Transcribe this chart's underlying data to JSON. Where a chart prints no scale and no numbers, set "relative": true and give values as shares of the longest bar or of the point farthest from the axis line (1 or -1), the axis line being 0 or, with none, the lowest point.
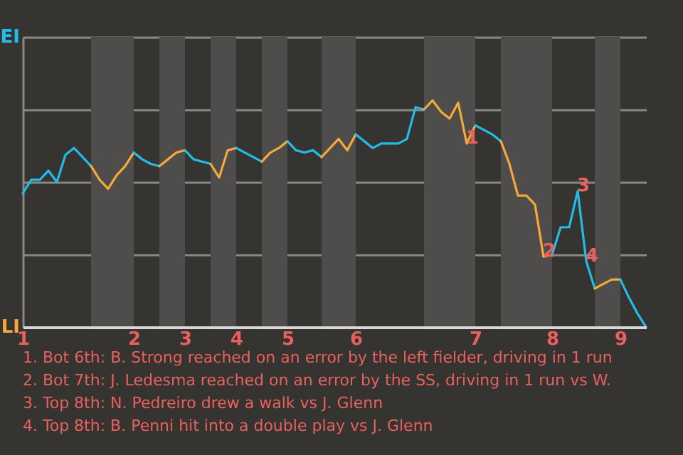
{
  "chart_data": {
    "type": "line",
    "relative": true,
    "categories": [
      "1",
      null,
      null,
      null,
      null,
      null,
      null,
      null,
      null,
      null,
      null,
      null,
      null,
      "2",
      null,
      null,
      null,
      null,
      null,
      "3",
      null,
      null,
      null,
      null,
      null,
      "4",
      null,
      null,
      null,
      null,
      null,
      "5",
      null,
      null,
      null,
      null,
      null,
      null,
      null,
      "6",
      null,
      null,
      null,
      null,
      null,
      null,
      null,
      null,
      null,
      null,
      null,
      null,
      null,
      "7",
      null,
      null,
      null,
      null,
      null,
      null,
      null,
      null,
      "8",
      null,
      null,
      null,
      null,
      null,
      null,
      null,
      "9",
      null,
      null,
      null
    ],
    "grid": "y",
    "series": [
      {
        "name": "EI",
        "color": "#22bde6",
        "values": [
          0.59,
          0.65,
          0.65,
          0.69,
          0.64,
          0.76,
          0.79,
          0.75,
          0.71,
          null,
          null,
          null,
          null,
          null,
          null,
          null,
          null,
          null,
          null,
          null,
          null,
          null,
          null,
          null,
          null,
          null,
          null,
          null,
          null,
          null,
          null,
          null,
          null,
          null,
          null,
          null,
          null,
          null,
          null,
          null,
          null,
          null,
          null,
          null,
          null,
          null,
          null,
          null,
          null,
          null,
          null,
          null,
          null,
          null,
          null,
          null,
          null,
          null,
          null,
          null,
          null,
          null,
          null,
          null,
          null,
          null,
          null,
          null,
          null,
          null,
          null,
          null,
          null,
          null
        ]
      },
      {
        "name": "LI",
        "color": "#f5a93a",
        "values": [
          null,
          null,
          null,
          null,
          null,
          null,
          null,
          null,
          0.71,
          0.65,
          0.61,
          0.67,
          0.71,
          0.77,
          null,
          null,
          null,
          null,
          null,
          null,
          null,
          null,
          null,
          null,
          null,
          null,
          null,
          null,
          null,
          null,
          null,
          null,
          null,
          null,
          null,
          null,
          null,
          null,
          null,
          null,
          null,
          null,
          null,
          null,
          null,
          null,
          null,
          null,
          null,
          null,
          null,
          null,
          null,
          null,
          null,
          null,
          null,
          null,
          null,
          null,
          null,
          null,
          null,
          null,
          null,
          null,
          null,
          null,
          null,
          null,
          null,
          null,
          null,
          null
        ]
      },
      {
        "color": "#22bde6",
        "values": [
          null,
          null,
          null,
          null,
          null,
          null,
          null,
          null,
          null,
          null,
          null,
          null,
          null,
          0.77,
          0.74,
          0.72,
          0.71,
          null,
          null,
          null,
          null,
          null,
          null,
          null,
          null,
          null,
          null,
          null,
          null,
          null,
          null,
          null,
          null,
          null,
          null,
          null,
          null,
          null,
          null,
          null,
          null,
          null,
          null,
          null,
          null,
          null,
          null,
          null,
          null,
          null,
          null,
          null,
          null,
          null,
          null,
          null,
          null,
          null,
          null,
          null,
          null,
          null,
          null,
          null,
          null,
          null,
          null,
          null,
          null,
          null,
          null,
          null,
          null,
          null
        ]
      },
      {
        "color": "#f5a93a",
        "values": [
          null,
          null,
          null,
          null,
          null,
          null,
          null,
          null,
          null,
          null,
          null,
          null,
          null,
          null,
          null,
          null,
          0.71,
          0.74,
          0.77,
          0.78,
          null,
          null,
          null,
          null,
          null,
          null,
          null,
          null,
          null,
          null,
          null,
          null,
          null,
          null,
          null,
          null,
          null,
          null,
          null,
          null,
          null,
          null,
          null,
          null,
          null,
          null,
          null,
          null,
          null,
          null,
          null,
          null,
          null,
          null,
          null,
          null,
          null,
          null,
          null,
          null,
          null,
          null,
          null,
          null,
          null,
          null,
          null,
          null,
          null,
          null,
          null,
          null,
          null,
          null
        ]
      },
      {
        "color": "#22bde6",
        "values": [
          null,
          null,
          null,
          null,
          null,
          null,
          null,
          null,
          null,
          null,
          null,
          null,
          null,
          null,
          null,
          null,
          null,
          null,
          null,
          0.78,
          0.74,
          0.73,
          0.72,
          null,
          null,
          null,
          null,
          null,
          null,
          null,
          null,
          null,
          null,
          null,
          null,
          null,
          null,
          null,
          null,
          null,
          null,
          null,
          null,
          null,
          null,
          null,
          null,
          null,
          null,
          null,
          null,
          null,
          null,
          null,
          null,
          null,
          null,
          null,
          null,
          null,
          null,
          null,
          null,
          null,
          null,
          null,
          null,
          null,
          null,
          null,
          null,
          null,
          null,
          null
        ]
      },
      {
        "color": "#f5a93a",
        "values": [
          null,
          null,
          null,
          null,
          null,
          null,
          null,
          null,
          null,
          null,
          null,
          null,
          null,
          null,
          null,
          null,
          null,
          null,
          null,
          null,
          null,
          null,
          0.72,
          0.66,
          0.78,
          0.79,
          null,
          null,
          null,
          null,
          null,
          null,
          null,
          null,
          null,
          null,
          null,
          null,
          null,
          null,
          null,
          null,
          null,
          null,
          null,
          null,
          null,
          null,
          null,
          null,
          null,
          null,
          null,
          null,
          null,
          null,
          null,
          null,
          null,
          null,
          null,
          null,
          null,
          null,
          null,
          null,
          null,
          null,
          null,
          null,
          null,
          null,
          null,
          null
        ]
      },
      {
        "color": "#22bde6",
        "values": [
          null,
          null,
          null,
          null,
          null,
          null,
          null,
          null,
          null,
          null,
          null,
          null,
          null,
          null,
          null,
          null,
          null,
          null,
          null,
          null,
          null,
          null,
          null,
          null,
          null,
          0.79,
          0.77,
          0.75,
          0.73,
          null,
          null,
          null,
          null,
          null,
          null,
          null,
          null,
          null,
          null,
          null,
          null,
          null,
          null,
          null,
          null,
          null,
          null,
          null,
          null,
          null,
          null,
          null,
          null,
          null,
          null,
          null,
          null,
          null,
          null,
          null,
          null,
          null,
          null,
          null,
          null,
          null,
          null,
          null,
          null,
          null,
          null,
          null,
          null,
          null
        ]
      },
      {
        "color": "#f5a93a",
        "values": [
          null,
          null,
          null,
          null,
          null,
          null,
          null,
          null,
          null,
          null,
          null,
          null,
          null,
          null,
          null,
          null,
          null,
          null,
          null,
          null,
          null,
          null,
          null,
          null,
          null,
          null,
          null,
          null,
          0.73,
          0.77,
          0.79,
          0.82,
          null,
          null,
          null,
          null,
          null,
          null,
          null,
          null,
          null,
          null,
          null,
          null,
          null,
          null,
          null,
          null,
          null,
          null,
          null,
          null,
          null,
          null,
          null,
          null,
          null,
          null,
          null,
          null,
          null,
          null,
          null,
          null,
          null,
          null,
          null,
          null,
          null,
          null,
          null,
          null,
          null,
          null
        ]
      },
      {
        "color": "#22bde6",
        "values": [
          null,
          null,
          null,
          null,
          null,
          null,
          null,
          null,
          null,
          null,
          null,
          null,
          null,
          null,
          null,
          null,
          null,
          null,
          null,
          null,
          null,
          null,
          null,
          null,
          null,
          null,
          null,
          null,
          null,
          null,
          null,
          0.82,
          0.78,
          0.77,
          0.78,
          0.75,
          null,
          null,
          null,
          null,
          null,
          null,
          null,
          null,
          null,
          null,
          null,
          null,
          null,
          null,
          null,
          null,
          null,
          null,
          null,
          null,
          null,
          null,
          null,
          null,
          null,
          null,
          null,
          null,
          null,
          null,
          null,
          null,
          null,
          null,
          null,
          null,
          null,
          null
        ]
      },
      {
        "color": "#f5a93a",
        "values": [
          null,
          null,
          null,
          null,
          null,
          null,
          null,
          null,
          null,
          null,
          null,
          null,
          null,
          null,
          null,
          null,
          null,
          null,
          null,
          null,
          null,
          null,
          null,
          null,
          null,
          null,
          null,
          null,
          null,
          null,
          null,
          null,
          null,
          null,
          null,
          0.75,
          0.79,
          0.83,
          0.78,
          0.85,
          null,
          null,
          null,
          null,
          null,
          null,
          null,
          null,
          null,
          null,
          null,
          null,
          null,
          null,
          null,
          null,
          null,
          null,
          null,
          null,
          null,
          null,
          null,
          null,
          null,
          null,
          null,
          null,
          null,
          null,
          null,
          null,
          null,
          null
        ]
      },
      {
        "color": "#22bde6",
        "values": [
          null,
          null,
          null,
          null,
          null,
          null,
          null,
          null,
          null,
          null,
          null,
          null,
          null,
          null,
          null,
          null,
          null,
          null,
          null,
          null,
          null,
          null,
          null,
          null,
          null,
          null,
          null,
          null,
          null,
          null,
          null,
          null,
          null,
          null,
          null,
          null,
          null,
          null,
          null,
          0.85,
          0.82,
          0.79,
          0.81,
          0.81,
          0.81,
          0.83,
          0.97,
          0.96,
          null,
          null,
          null,
          null,
          null,
          null,
          null,
          null,
          null,
          null,
          null,
          null,
          null,
          null,
          null,
          null,
          null,
          null,
          null,
          null,
          null,
          null,
          null,
          null,
          null,
          null
        ]
      },
      {
        "color": "#f5a93a",
        "values": [
          null,
          null,
          null,
          null,
          null,
          null,
          null,
          null,
          null,
          null,
          null,
          null,
          null,
          null,
          null,
          null,
          null,
          null,
          null,
          null,
          null,
          null,
          null,
          null,
          null,
          null,
          null,
          null,
          null,
          null,
          null,
          null,
          null,
          null,
          null,
          null,
          null,
          null,
          null,
          null,
          null,
          null,
          null,
          null,
          null,
          null,
          null,
          0.96,
          1,
          0.95,
          0.92,
          0.99,
          0.81,
          0.89,
          null,
          null,
          null,
          null,
          null,
          null,
          null,
          null,
          null,
          null,
          null,
          null,
          null,
          null,
          null,
          null,
          null,
          null,
          null,
          null
        ]
      },
      {
        "color": "#22bde6",
        "values": [
          null,
          null,
          null,
          null,
          null,
          null,
          null,
          null,
          null,
          null,
          null,
          null,
          null,
          null,
          null,
          null,
          null,
          null,
          null,
          null,
          null,
          null,
          null,
          null,
          null,
          null,
          null,
          null,
          null,
          null,
          null,
          null,
          null,
          null,
          null,
          null,
          null,
          null,
          null,
          null,
          null,
          null,
          null,
          null,
          null,
          null,
          null,
          null,
          null,
          null,
          null,
          null,
          null,
          0.89,
          0.87,
          0.85,
          0.82,
          null,
          null,
          null,
          null,
          null,
          null,
          null,
          null,
          null,
          null,
          null,
          null,
          null,
          null,
          null,
          null,
          null
        ]
      },
      {
        "color": "#f5a93a",
        "values": [
          null,
          null,
          null,
          null,
          null,
          null,
          null,
          null,
          null,
          null,
          null,
          null,
          null,
          null,
          null,
          null,
          null,
          null,
          null,
          null,
          null,
          null,
          null,
          null,
          null,
          null,
          null,
          null,
          null,
          null,
          null,
          null,
          null,
          null,
          null,
          null,
          null,
          null,
          null,
          null,
          null,
          null,
          null,
          null,
          null,
          null,
          null,
          null,
          null,
          null,
          null,
          null,
          null,
          null,
          null,
          null,
          0.82,
          0.72,
          0.58,
          0.58,
          0.54,
          0.31,
          0.32,
          null,
          null,
          null,
          null,
          null,
          null,
          null,
          null,
          null,
          null,
          null
        ]
      },
      {
        "color": "#22bde6",
        "values": [
          null,
          null,
          null,
          null,
          null,
          null,
          null,
          null,
          null,
          null,
          null,
          null,
          null,
          null,
          null,
          null,
          null,
          null,
          null,
          null,
          null,
          null,
          null,
          null,
          null,
          null,
          null,
          null,
          null,
          null,
          null,
          null,
          null,
          null,
          null,
          null,
          null,
          null,
          null,
          null,
          null,
          null,
          null,
          null,
          null,
          null,
          null,
          null,
          null,
          null,
          null,
          null,
          null,
          null,
          null,
          null,
          null,
          null,
          null,
          null,
          null,
          null,
          0.32,
          0.44,
          0.44,
          0.6,
          0.29,
          0.17,
          null,
          null,
          null,
          null,
          null,
          null
        ]
      },
      {
        "color": "#f5a93a",
        "values": [
          null,
          null,
          null,
          null,
          null,
          null,
          null,
          null,
          null,
          null,
          null,
          null,
          null,
          null,
          null,
          null,
          null,
          null,
          null,
          null,
          null,
          null,
          null,
          null,
          null,
          null,
          null,
          null,
          null,
          null,
          null,
          null,
          null,
          null,
          null,
          null,
          null,
          null,
          null,
          null,
          null,
          null,
          null,
          null,
          null,
          null,
          null,
          null,
          null,
          null,
          null,
          null,
          null,
          null,
          null,
          null,
          null,
          null,
          null,
          null,
          null,
          null,
          null,
          null,
          null,
          null,
          null,
          0.17,
          0.19,
          0.21,
          0.21,
          null,
          null,
          null
        ]
      },
      {
        "color": "#22bde6",
        "values": [
          null,
          null,
          null,
          null,
          null,
          null,
          null,
          null,
          null,
          null,
          null,
          null,
          null,
          null,
          null,
          null,
          null,
          null,
          null,
          null,
          null,
          null,
          null,
          null,
          null,
          null,
          null,
          null,
          null,
          null,
          null,
          null,
          null,
          null,
          null,
          null,
          null,
          null,
          null,
          null,
          null,
          null,
          null,
          null,
          null,
          null,
          null,
          null,
          null,
          null,
          null,
          null,
          null,
          null,
          null,
          null,
          null,
          null,
          null,
          null,
          null,
          null,
          null,
          null,
          null,
          null,
          null,
          null,
          null,
          null,
          0.21,
          0.13,
          0.06,
          0
        ]
      }
    ],
    "annotations": [
      {
        "text": "1",
        "y": 0.81
      },
      {
        "text": "2",
        "y": 0.31
      },
      {
        "text": "3",
        "y": 0.6
      },
      {
        "text": "4",
        "y": 0.29
      },
      "1. Bot 6th: B. Strong reached on an error by the left fielder, driving in 1 run",
      "2. Bot 7th: J. Ledesma reached on an error by the SS, driving in 1 run vs W.",
      "3. Top 8th: N. Pedreiro drew a walk vs J. Glenn",
      "4. Top 8th: B. Penni hit into a double play vs J. Glenn"
    ]
  }
}
